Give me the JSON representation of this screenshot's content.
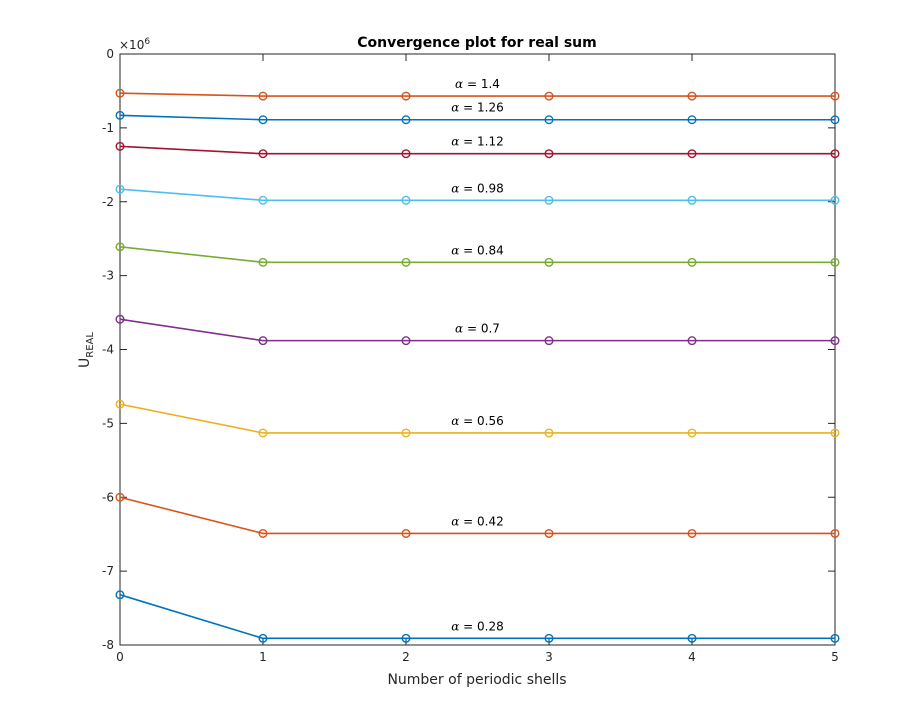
{
  "chart_data": {
    "type": "line",
    "title": "Convergence plot for real sum",
    "xlabel": "Number of periodic shells",
    "ylabel_main": "U",
    "ylabel_sub": "REAL",
    "y_exponent_base": "×10",
    "y_exponent_power": "6",
    "xlim": [
      0,
      5
    ],
    "ylim": [
      -8,
      0
    ],
    "xticks": [
      "0",
      "1",
      "2",
      "3",
      "4",
      "5"
    ],
    "yticks": [
      "0",
      "-1",
      "-2",
      "-3",
      "-4",
      "-5",
      "-6",
      "-7",
      "-8"
    ],
    "grid": false,
    "x": [
      0,
      1,
      2,
      3,
      4,
      5
    ],
    "series": [
      {
        "label": "α = 1.4",
        "label_symbol": "α",
        "label_value": " = 1.4",
        "color": "#D95319",
        "values": [
          -0.53,
          -0.57,
          -0.57,
          -0.57,
          -0.57,
          -0.57
        ]
      },
      {
        "label": "α = 1.26",
        "label_symbol": "α",
        "label_value": " = 1.26",
        "color": "#0072BD",
        "values": [
          -0.83,
          -0.89,
          -0.89,
          -0.89,
          -0.89,
          -0.89
        ]
      },
      {
        "label": "α = 1.12",
        "label_symbol": "α",
        "label_value": " = 1.12",
        "color": "#A2142F",
        "values": [
          -1.25,
          -1.35,
          -1.35,
          -1.35,
          -1.35,
          -1.35
        ]
      },
      {
        "label": "α = 0.98",
        "label_symbol": "α",
        "label_value": " = 0.98",
        "color": "#4DBEEE",
        "values": [
          -1.83,
          -1.98,
          -1.98,
          -1.98,
          -1.98,
          -1.98
        ]
      },
      {
        "label": "α = 0.84",
        "label_symbol": "α",
        "label_value": " = 0.84",
        "color": "#77AC30",
        "values": [
          -2.61,
          -2.82,
          -2.82,
          -2.82,
          -2.82,
          -2.82
        ]
      },
      {
        "label": "α = 0.7",
        "label_symbol": "α",
        "label_value": " = 0.7",
        "color": "#7E2F8E",
        "values": [
          -3.59,
          -3.88,
          -3.88,
          -3.88,
          -3.88,
          -3.88
        ]
      },
      {
        "label": "α = 0.56",
        "label_symbol": "α",
        "label_value": " = 0.56",
        "color": "#EDB120",
        "values": [
          -4.74,
          -5.13,
          -5.13,
          -5.13,
          -5.13,
          -5.13
        ]
      },
      {
        "label": "α = 0.42",
        "label_symbol": "α",
        "label_value": " = 0.42",
        "color": "#D95319",
        "values": [
          -6.0,
          -6.49,
          -6.49,
          -6.49,
          -6.49,
          -6.49
        ]
      },
      {
        "label": "α = 0.28",
        "label_symbol": "α",
        "label_value": " = 0.28",
        "color": "#0072BD",
        "values": [
          -7.32,
          -7.91,
          -7.91,
          -7.91,
          -7.91,
          -7.91
        ]
      }
    ]
  }
}
